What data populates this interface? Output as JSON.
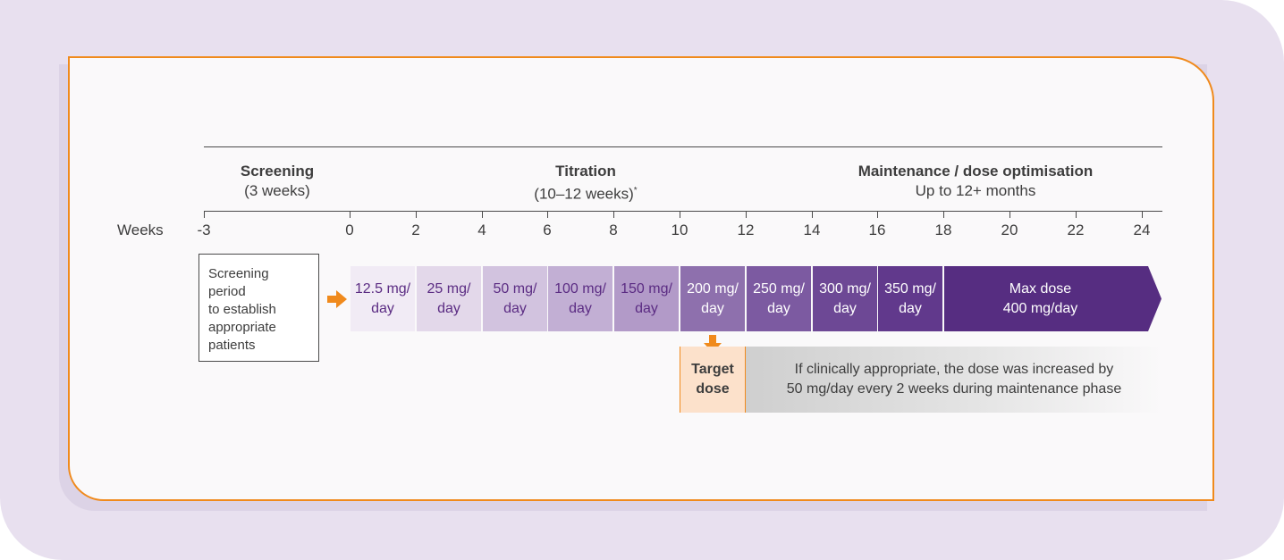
{
  "phases": {
    "screening": {
      "title": "Screening",
      "subtitle": "(3 weeks)"
    },
    "titration": {
      "title": "Titration",
      "subtitle": "(10–12 weeks)",
      "footnote": "*"
    },
    "maintenance": {
      "title": "Maintenance / dose optimisation",
      "subtitle": "Up to 12+ months"
    }
  },
  "axis": {
    "label": "Weeks",
    "ticks": [
      "-3",
      "0",
      "2",
      "4",
      "6",
      "8",
      "10",
      "12",
      "14",
      "16",
      "18",
      "20",
      "22",
      "24"
    ]
  },
  "screening_box": "Screening\nperiod\nto establish\nappropriate\npatients",
  "doses": [
    {
      "label": "12.5 mg/\nday",
      "fill": "#f1ebf5",
      "text": "#5b2c83"
    },
    {
      "label": "25 mg/\nday",
      "fill": "#e3d8ea",
      "text": "#5b2c83"
    },
    {
      "label": "50 mg/\nday",
      "fill": "#d2c3df",
      "text": "#5b2c83"
    },
    {
      "label": "100 mg/\nday",
      "fill": "#c2afd4",
      "text": "#5b2c83"
    },
    {
      "label": "150 mg/\nday",
      "fill": "#b29ac8",
      "text": "#5b2c83"
    },
    {
      "label": "200 mg/\nday",
      "fill": "#8e70ad",
      "text": "#ffffff"
    },
    {
      "label": "250 mg/\nday",
      "fill": "#7c5aa1",
      "text": "#ffffff"
    },
    {
      "label": "300 mg/\nday",
      "fill": "#6d4895",
      "text": "#ffffff"
    },
    {
      "label": "350 mg/\nday",
      "fill": "#61398c",
      "text": "#ffffff"
    }
  ],
  "max_dose": {
    "label": "Max dose\n400 mg/day",
    "fill": "#562d81"
  },
  "target_dose": "Target\ndose",
  "note": "If clinically appropriate, the dose was increased by\n50 mg/day every 2 weeks during maintenance phase",
  "colors": {
    "accent_orange": "#f08a1c",
    "text_dark": "#3d3d3d",
    "purple_dark": "#562d81"
  }
}
